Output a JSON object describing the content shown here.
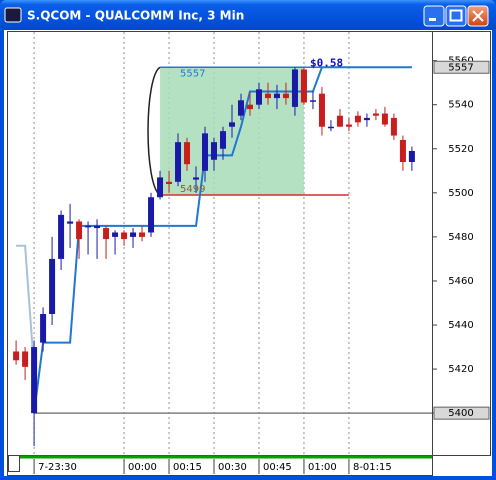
{
  "window": {
    "title": "S.QCOM - QUALCOMM Inc, 3 Min"
  },
  "chart_data": {
    "type": "candlestick",
    "x": [
      -36,
      -33,
      -30,
      -27,
      -24,
      -21,
      -18,
      -15,
      -12,
      -9,
      -6,
      -3,
      0,
      3,
      6,
      9,
      12,
      15,
      18,
      21,
      24,
      27,
      30,
      33,
      36,
      39,
      42,
      45,
      48,
      51,
      54,
      57,
      60,
      63,
      66,
      69,
      72,
      75,
      78,
      81,
      84,
      87,
      90,
      93,
      96
    ],
    "open": [
      5428,
      5428,
      5400,
      5432,
      5445,
      5470,
      5486,
      5487,
      5485,
      5484,
      5484,
      5480,
      5482,
      5480,
      5482,
      5482,
      5498,
      5505,
      5505,
      5523,
      5506,
      5510,
      5515,
      5520,
      5530,
      5535,
      5540,
      5540,
      5545,
      5543,
      5545,
      5539,
      5556,
      5542,
      5545,
      5530,
      5535,
      5531,
      5535,
      5533,
      5536,
      5536,
      5534,
      5524,
      5514
    ],
    "high": [
      5433,
      5430,
      5433,
      5448,
      5480,
      5492,
      5495,
      5488,
      5487,
      5488,
      5485,
      5483,
      5483,
      5484,
      5485,
      5500,
      5510,
      5510,
      5527,
      5525,
      5512,
      5530,
      5525,
      5530,
      5540,
      5545,
      5546,
      5550,
      5550,
      5549,
      5550,
      5557,
      5557,
      5546,
      5548,
      5533,
      5538,
      5534,
      5537,
      5536,
      5538,
      5539,
      5536,
      5526,
      5521
    ],
    "low": [
      5422,
      5415,
      5385,
      5428,
      5440,
      5465,
      5475,
      5470,
      5472,
      5470,
      5470,
      5472,
      5476,
      5475,
      5478,
      5480,
      5497,
      5500,
      5503,
      5510,
      5500,
      5505,
      5510,
      5515,
      5525,
      5533,
      5535,
      5538,
      5540,
      5538,
      5540,
      5535,
      5540,
      5538,
      5526,
      5528,
      5530,
      5528,
      5530,
      5530,
      5533,
      5530,
      5524,
      5510,
      5510
    ],
    "close": [
      5424,
      5421,
      5430,
      5445,
      5470,
      5490,
      5487,
      5479,
      5485,
      5485,
      5479,
      5482,
      5479,
      5482,
      5480,
      5498,
      5507,
      5504,
      5523,
      5513,
      5507,
      5527,
      5523,
      5528,
      5532,
      5542,
      5538,
      5547,
      5543,
      5545,
      5543,
      5556,
      5541,
      5542,
      5530,
      5530,
      5530,
      5530,
      5532,
      5534,
      5535,
      5531,
      5526,
      5514,
      5519
    ],
    "up_color": "#1a1aa8",
    "down_color": "#c81e1e",
    "xlim": [
      -38.7,
      102.7
    ],
    "xticks": [
      {
        "value": -30,
        "label": "7-23:30"
      },
      {
        "value": 0,
        "label": "00:00"
      },
      {
        "value": 15,
        "label": "00:15"
      },
      {
        "value": 30,
        "label": "00:30"
      },
      {
        "value": 45,
        "label": "00:45"
      },
      {
        "value": 60,
        "label": "01:00"
      },
      {
        "value": 75,
        "label": "8-01:15"
      }
    ],
    "ylim": [
      5381,
      5573
    ],
    "yticks": [
      5400,
      5420,
      5440,
      5460,
      5480,
      5500,
      5520,
      5540,
      5560
    ],
    "lines": [
      {
        "color": "#1e78d2",
        "values": [
          null,
          null,
          5400,
          5432,
          5432,
          5432,
          5432,
          5485,
          5485,
          5485,
          5485,
          5485,
          5485,
          5485,
          5485,
          5485,
          5485,
          5485,
          5485,
          5485,
          5485,
          5517,
          5517,
          5517,
          5517,
          5530,
          5546,
          5546,
          5546,
          5546,
          5546,
          5546,
          5546,
          5546,
          5557,
          5557,
          5557,
          5557,
          5557,
          5557,
          5557,
          5557,
          5557,
          5557,
          5557
        ]
      },
      {
        "color": "#a8c0d8",
        "values": [
          5476,
          5476,
          5420,
          null,
          null,
          null,
          null,
          null,
          null,
          null,
          null,
          null,
          null,
          null,
          null,
          null,
          null,
          null,
          null,
          null,
          null,
          null,
          null,
          null,
          null,
          null,
          null,
          null,
          null,
          null,
          null,
          null,
          null,
          null,
          null,
          null,
          null,
          null,
          null,
          null,
          null,
          null,
          null,
          null,
          null
        ]
      }
    ],
    "levels": [
      {
        "value": 5557,
        "color": "#1e78d2",
        "from": 12,
        "to": 96
      },
      {
        "value": 5499,
        "color": "#d03030",
        "from": 12,
        "to": 75
      },
      {
        "value": 5400,
        "color": "#808080",
        "from": -30,
        "to": 102.7
      }
    ],
    "range_box": {
      "from": 12,
      "to": 60,
      "color": "#a8dcb8",
      "high": {
        "value": 5557,
        "label": "5557"
      },
      "low": {
        "value": 5499,
        "label": "5499"
      },
      "change_label": "$0.58"
    },
    "price_tags": [
      {
        "value": 5557,
        "label": "5557"
      },
      {
        "value": 5400,
        "label": "5400"
      }
    ]
  }
}
